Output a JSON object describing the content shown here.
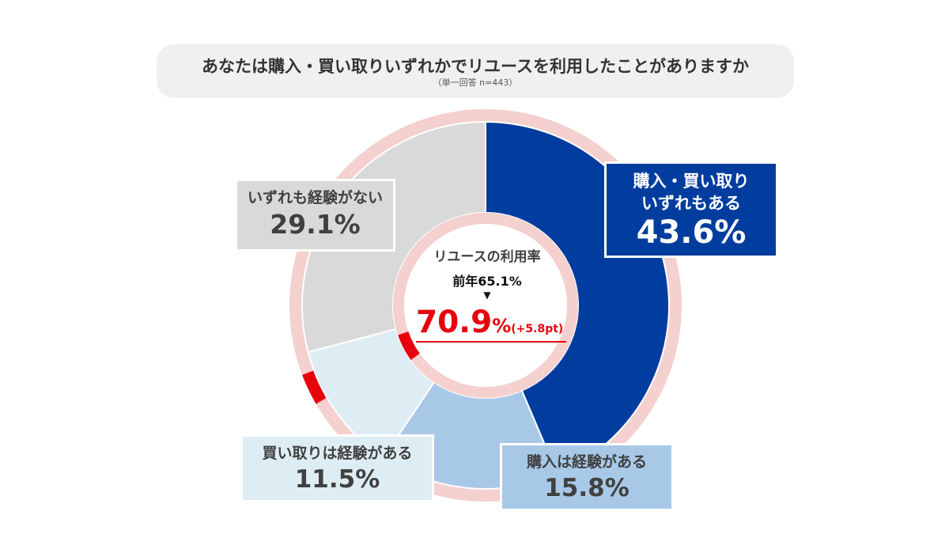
{
  "header": {
    "title": "あなたは購入・買い取りいずれかでリユースを利用したことがありますか",
    "subtitle": "（単一回答 n=443）"
  },
  "center": {
    "label": "リユースの利用率",
    "prev_label": "前年65.1%",
    "arrow": "▼",
    "value": "70.9%",
    "value_number": "70.9",
    "value_unit": "%",
    "delta": "(+5.8pt)"
  },
  "labels": {
    "both": {
      "line1": "購入・買い取り",
      "line2": "いずれもある",
      "pct": "43.6%"
    },
    "purchase": {
      "name": "購入は経験がある",
      "pct": "15.8%"
    },
    "sell": {
      "name": "買い取りは経験がある",
      "pct": "11.5%"
    },
    "none": {
      "name": "いずれも経験がない",
      "pct": "29.1%"
    }
  },
  "colors": {
    "both": "#003d9e",
    "purchase": "#a8c8e8",
    "sell": "#deedf4",
    "none": "#d9d9d9",
    "ring": "#f4d0ce",
    "accent": "#e8000d"
  },
  "chart_data": {
    "type": "pie",
    "title": "あなたは購入・買い取りいずれかでリユースを利用したことがありますか",
    "subtitle": "（単一回答 n=443）",
    "categories": [
      "購入・買い取りいずれもある",
      "購入は経験がある",
      "買い取りは経験がある",
      "いずれも経験がない"
    ],
    "values": [
      43.6,
      15.8,
      11.5,
      29.1
    ],
    "unit": "%",
    "center_summary": {
      "label": "リユースの利用率",
      "value": 70.9,
      "previous_year": 65.1,
      "change_pt": 5.8
    }
  }
}
